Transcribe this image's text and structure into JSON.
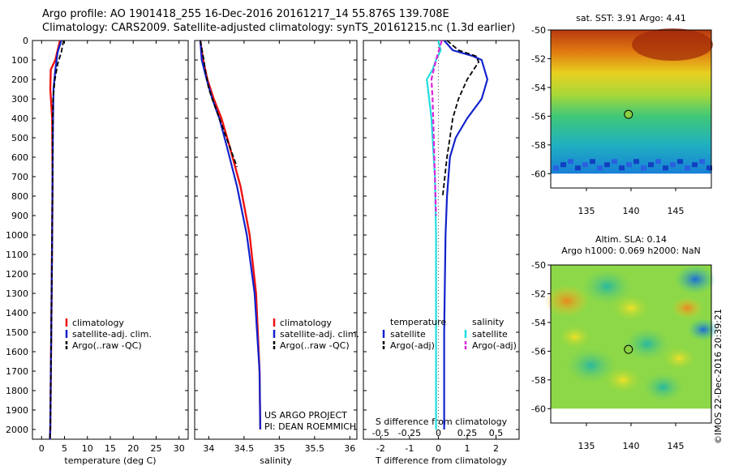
{
  "header": {
    "line1": "Argo profile: AO 1901418_255 16-Dec-2016 20161217_14 55.876S 139.708E",
    "line2": "Climatology: CARS2009. Satellite-adjusted climatology: synTS_20161215.nc (1.3d earlier)"
  },
  "colors": {
    "climatology": "#ee1111",
    "satellite": "#1122cc",
    "argo": "#000000",
    "satellite_s": "#22dddd",
    "argo_s": "#dd22dd"
  },
  "chart_data": [
    {
      "id": "temperature",
      "type": "line",
      "xlabel": "temperature (deg C)",
      "xlim": [
        -2,
        32
      ],
      "xticks": [
        0,
        5,
        10,
        15,
        20,
        25,
        30
      ],
      "ylim": [
        2050,
        0
      ],
      "yticks": [
        0,
        100,
        200,
        300,
        400,
        500,
        600,
        700,
        800,
        900,
        1000,
        1100,
        1200,
        1300,
        1400,
        1500,
        1600,
        1700,
        1800,
        1900,
        2000
      ],
      "legend": [
        "climatology",
        "satellite-adj. clim.",
        "Argo(..raw -QC)"
      ],
      "series": [
        {
          "name": "climatology",
          "style": "climatology",
          "points": [
            [
              4.0,
              0
            ],
            [
              3.0,
              100
            ],
            [
              2.0,
              150
            ],
            [
              1.9,
              250
            ],
            [
              2.3,
              400
            ],
            [
              2.4,
              700
            ],
            [
              2.3,
              1000
            ],
            [
              2.1,
              1500
            ],
            [
              1.9,
              2000
            ],
            [
              1.8,
              2050
            ]
          ]
        },
        {
          "name": "satellite-adj. clim.",
          "style": "satellite",
          "points": [
            [
              4.3,
              0
            ],
            [
              3.5,
              60
            ],
            [
              3.0,
              150
            ],
            [
              2.6,
              250
            ],
            [
              2.5,
              400
            ],
            [
              2.4,
              700
            ],
            [
              2.3,
              1000
            ],
            [
              2.1,
              1500
            ],
            [
              1.9,
              2000
            ],
            [
              1.8,
              2050
            ]
          ]
        },
        {
          "name": "Argo(..raw -QC)",
          "style": "argo",
          "points": [
            [
              4.8,
              0
            ],
            [
              4.3,
              60
            ],
            [
              3.5,
              120
            ],
            [
              2.9,
              200
            ],
            [
              2.5,
              300
            ],
            [
              2.4,
              500
            ],
            [
              2.4,
              700
            ],
            [
              2.3,
              1000
            ],
            [
              2.1,
              1500
            ],
            [
              1.9,
              2000
            ],
            [
              1.8,
              2050
            ]
          ]
        }
      ]
    },
    {
      "id": "salinity",
      "type": "line",
      "xlabel": "salinity",
      "xlim": [
        33.8,
        36.1
      ],
      "xticks": [
        34,
        34.5,
        35,
        35.5,
        36
      ],
      "ylim": [
        2050,
        0
      ],
      "legend": [
        "climatology",
        "satellite-adj. clim.",
        "Argo(..raw -QC)"
      ],
      "annotation": [
        "US ARGO PROJECT",
        "PI: DEAN ROEMMICH"
      ],
      "series": [
        {
          "name": "climatology",
          "style": "climatology",
          "points": [
            [
              33.88,
              0
            ],
            [
              33.92,
              100
            ],
            [
              33.98,
              200
            ],
            [
              34.07,
              300
            ],
            [
              34.18,
              400
            ],
            [
              34.3,
              550
            ],
            [
              34.45,
              750
            ],
            [
              34.58,
              1000
            ],
            [
              34.67,
              1300
            ],
            [
              34.72,
              1700
            ],
            [
              34.73,
              2000
            ]
          ]
        },
        {
          "name": "satellite-adj. clim.",
          "style": "satellite",
          "points": [
            [
              33.88,
              0
            ],
            [
              33.9,
              100
            ],
            [
              33.97,
              200
            ],
            [
              34.05,
              300
            ],
            [
              34.15,
              400
            ],
            [
              34.26,
              550
            ],
            [
              34.4,
              750
            ],
            [
              34.54,
              1000
            ],
            [
              34.65,
              1300
            ],
            [
              34.72,
              1700
            ],
            [
              34.73,
              2000
            ]
          ]
        },
        {
          "name": "Argo(..raw -QC)",
          "style": "argo",
          "points": [
            [
              33.88,
              0
            ],
            [
              33.93,
              100
            ],
            [
              33.95,
              150
            ],
            [
              34.0,
              250
            ],
            [
              34.1,
              350
            ],
            [
              34.2,
              450
            ],
            [
              34.3,
              550
            ],
            [
              34.4,
              650
            ]
          ]
        }
      ]
    },
    {
      "id": "difference",
      "type": "line",
      "xlabel": "T difference from climatology",
      "xlim": [
        -2.6,
        2.8
      ],
      "xticks": [
        -2,
        -1,
        0,
        1,
        2
      ],
      "top_label": "S difference from climatology",
      "top_ticks": [
        "-0.5",
        "-0.25",
        "0",
        "0.25",
        "0.5"
      ],
      "top_tick_values": [
        -0.5,
        -0.25,
        0,
        0.25,
        0.5
      ],
      "ylim": [
        2050,
        0
      ],
      "legend_titles": [
        "temperature",
        "salinity"
      ],
      "legend_t": [
        "satellite",
        "Argo(-adj)"
      ],
      "legend_s": [
        "satellite",
        "Argo(-adj)"
      ],
      "series": [
        {
          "name": "T satellite",
          "style": "satellite",
          "points": [
            [
              0.2,
              0
            ],
            [
              0.5,
              50
            ],
            [
              1.2,
              80
            ],
            [
              1.5,
              100
            ],
            [
              1.7,
              200
            ],
            [
              1.5,
              300
            ],
            [
              1.0,
              400
            ],
            [
              0.6,
              500
            ],
            [
              0.4,
              600
            ],
            [
              0.3,
              800
            ],
            [
              0.25,
              1000
            ],
            [
              0.2,
              1500
            ],
            [
              0.2,
              2000
            ]
          ]
        },
        {
          "name": "T Argo(-adj)",
          "style": "argo",
          "points": [
            [
              0.3,
              0
            ],
            [
              0.7,
              50
            ],
            [
              1.3,
              80
            ],
            [
              1.4,
              110
            ],
            [
              1.0,
              200
            ],
            [
              0.7,
              300
            ],
            [
              0.5,
              400
            ],
            [
              0.4,
              500
            ],
            [
              0.3,
              600
            ],
            [
              0.15,
              800
            ]
          ]
        },
        {
          "name": "S satellite",
          "style": "satellite_s",
          "points": [
            [
              0.0,
              0
            ],
            [
              0.02,
              50
            ],
            [
              -0.02,
              100
            ],
            [
              -0.05,
              150
            ],
            [
              -0.1,
              200
            ],
            [
              -0.08,
              300
            ],
            [
              -0.06,
              400
            ],
            [
              -0.05,
              500
            ],
            [
              -0.03,
              700
            ],
            [
              -0.02,
              1000
            ],
            [
              -0.02,
              1500
            ],
            [
              -0.02,
              2000
            ]
          ]
        },
        {
          "name": "S Argo(-adj)",
          "style": "argo_s",
          "points": [
            [
              0.03,
              0
            ],
            [
              -0.02,
              100
            ],
            [
              -0.06,
              200
            ],
            [
              -0.05,
              300
            ],
            [
              -0.04,
              500
            ],
            [
              -0.03,
              700
            ],
            [
              -0.02,
              900
            ]
          ]
        }
      ]
    },
    {
      "id": "sst_map",
      "type": "heatmap",
      "title": "sat. SST: 3.91  Argo: 4.41",
      "xlim": [
        131,
        149
      ],
      "ylim": [
        -61,
        -50
      ],
      "xticks": [
        135,
        140,
        145
      ],
      "yticks": [
        -50,
        -52,
        -54,
        -56,
        -58,
        -60
      ],
      "marker": [
        139.708,
        -55.876
      ]
    },
    {
      "id": "sla_map",
      "type": "heatmap",
      "title_lines": [
        "Altim. SLA: 0.14",
        "Argo h1000: 0.069 h2000: NaN"
      ],
      "xlim": [
        131,
        149
      ],
      "ylim": [
        -61,
        -50
      ],
      "xticks": [
        135,
        140,
        145
      ],
      "yticks": [
        -50,
        -52,
        -54,
        -56,
        -58,
        -60
      ],
      "marker": [
        139.708,
        -55.876
      ]
    }
  ],
  "credit": "©IMOS 22-Dec-2016 20:39:21"
}
